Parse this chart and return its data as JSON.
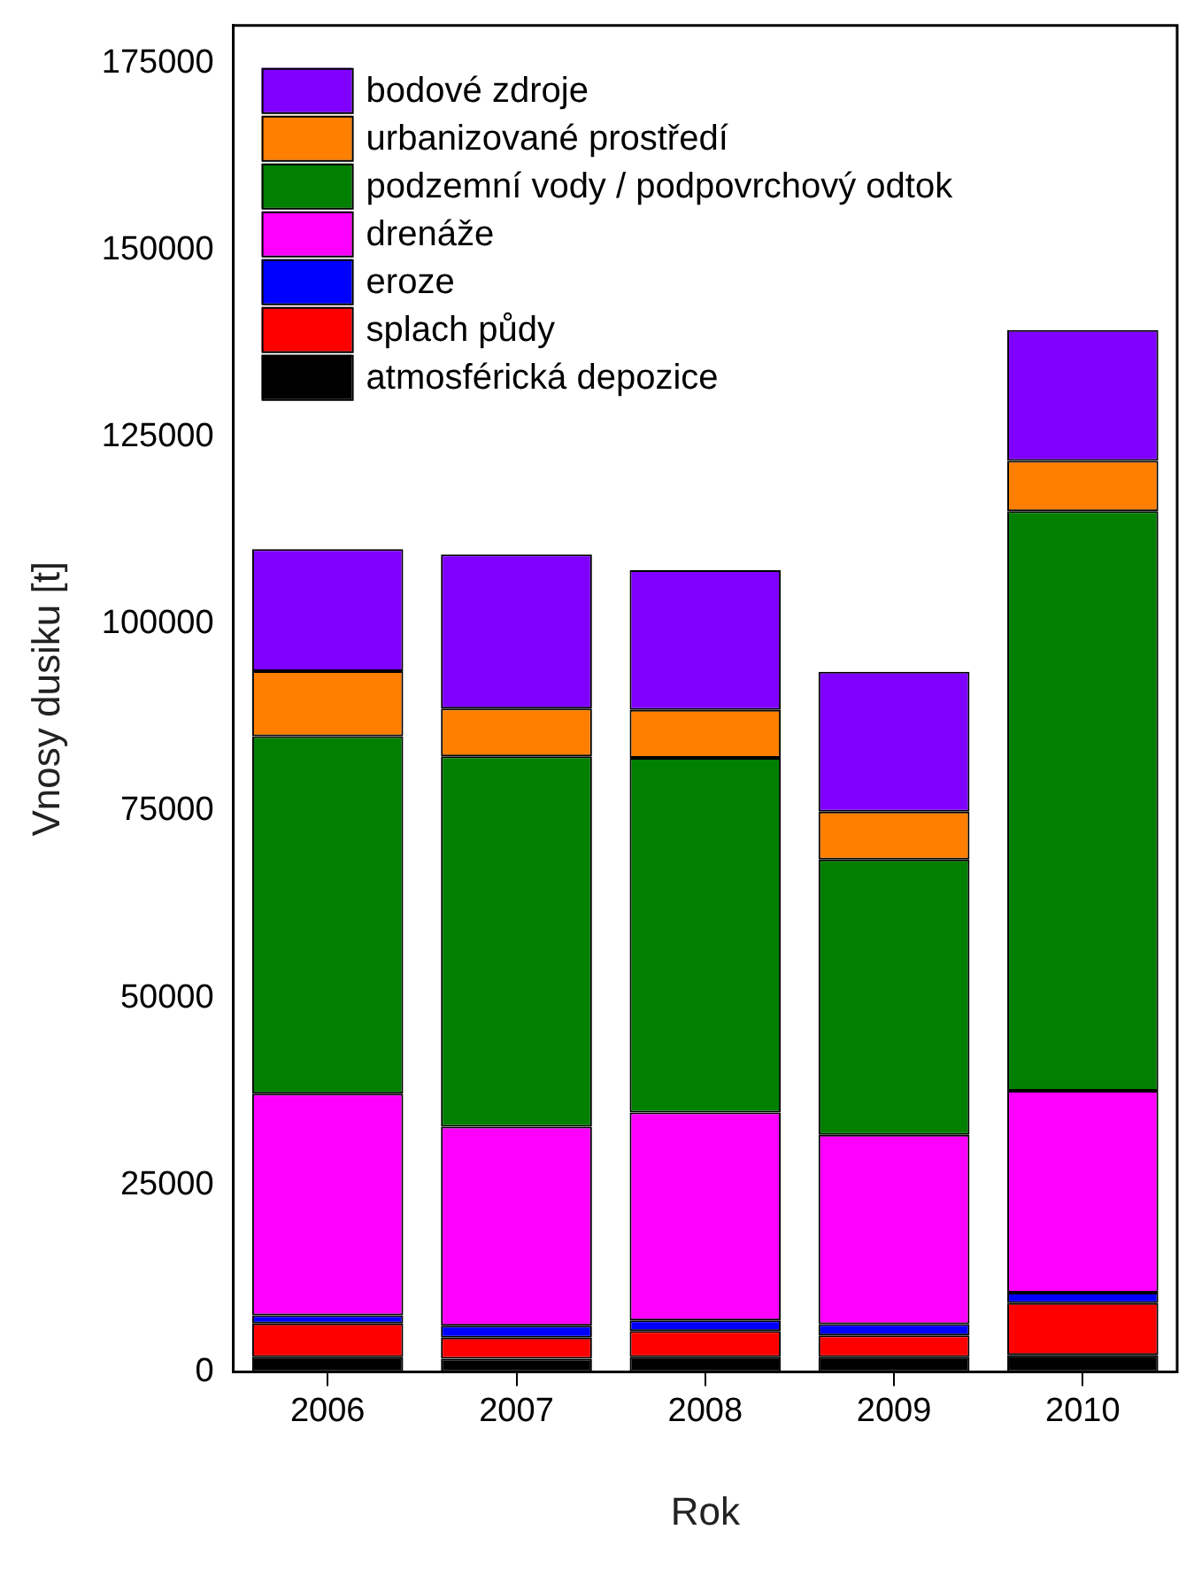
{
  "chart_data": {
    "type": "bar",
    "stacked": true,
    "xlabel": "Rok",
    "ylabel": "Vnosy dusiku [t]",
    "categories": [
      "2006",
      "2007",
      "2008",
      "2009",
      "2010"
    ],
    "series": [
      {
        "name": "atmosférická depozice",
        "color": "#000000",
        "values": [
          2000,
          1800,
          2000,
          2000,
          2300
        ]
      },
      {
        "name": "splach půdy",
        "color": "#ff0000",
        "values": [
          4500,
          2800,
          3500,
          2900,
          6900
        ]
      },
      {
        "name": "eroze",
        "color": "#0000ff",
        "values": [
          1100,
          1600,
          1400,
          1500,
          1400
        ]
      },
      {
        "name": "drenáže",
        "color": "#ff00ff",
        "values": [
          29600,
          26600,
          27800,
          25300,
          27000
        ]
      },
      {
        "name": "podzemní vody / podpovrchový odtok",
        "color": "#007f00",
        "values": [
          47800,
          49500,
          47400,
          36800,
          77500
        ]
      },
      {
        "name": "urbanizované prostředí",
        "color": "#ff7f00",
        "values": [
          8700,
          6400,
          6400,
          6400,
          6700
        ]
      },
      {
        "name": "bodové zdroje",
        "color": "#7f00ff",
        "values": [
          16300,
          20600,
          18700,
          18700,
          17500
        ]
      }
    ],
    "ylim": [
      0,
      180000
    ],
    "yticks": [
      0,
      25000,
      50000,
      75000,
      100000,
      125000,
      150000,
      175000
    ],
    "grid": false,
    "legend": "top left"
  }
}
